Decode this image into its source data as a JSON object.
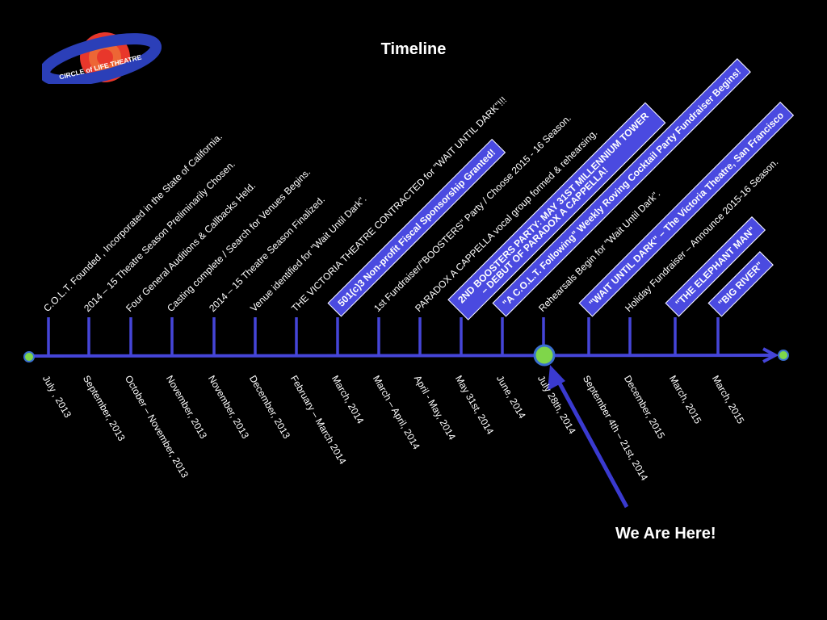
{
  "title": "Timeline",
  "logo": {
    "text": "CIRCLE of LIFE THEATRE",
    "colors": {
      "ring": "#2b3fb8",
      "planet": "#e8372b",
      "swirl": "#f07a3a"
    }
  },
  "you_are_here": "We Are Here!",
  "colors": {
    "axis": "#4545d8",
    "box_fill": "#4a4ae0",
    "marker": "#7fd64a",
    "arrow": "#3a3ad0"
  },
  "events": [
    {
      "text": "C.O.L.T. Founded , Incorporated in the State of California.",
      "boxed": false
    },
    {
      "text": "2014 – 15 Theatre Season Preliminarily Chosen.",
      "boxed": false
    },
    {
      "text": "Four General Auditions & Callbacks Held.",
      "boxed": false
    },
    {
      "text": "Casting complete / Search for Venues Begins.",
      "boxed": false
    },
    {
      "text": "2014 – 15 Theatre Season Finalized.",
      "boxed": false
    },
    {
      "text": "Venue identified for \"Wait Until Dark\".",
      "boxed": false
    },
    {
      "text": "THE VICTORIA THEATRE CONTRACTED for \"WAIT UNTIL DARK\"!!!",
      "boxed": false
    },
    {
      "text": "501(c)3 Non-profit Fiscal Sponsorship Granted!",
      "boxed": true
    },
    {
      "text": "1st Fundraiser/\"BOOSTERS\" Party / Choose 2015 - 16 Season.",
      "boxed": false
    },
    {
      "text": "PARADOX A CAPPELLA vocal group formed & rehearsing.",
      "boxed": false
    },
    {
      "text": "2ND BOOSTERS PARTY: MAY 31ST MILLENNIUM TOWER",
      "text2": "– DEBUT OF PARADOX A CAPPELLA!",
      "boxed": true
    },
    {
      "text": "\"A C.O.L.T. Following\" Weekly Roving Cocktail Party Fundraiser Begins!",
      "boxed": true
    },
    {
      "text": "Rehearsals Begin for \"Wait Until Dark\".",
      "boxed": false
    },
    {
      "text": "\"WAIT UNTIL DARK\" – The Victoria Theatre, San Francisco",
      "boxed": true
    },
    {
      "text": "Holiday Fundraiser – Announce 2015-16 Season.",
      "boxed": false
    },
    {
      "text": "\"THE ELEPHANT MAN\"",
      "boxed": true
    },
    {
      "text": "\"BIG RIVER\"",
      "boxed": true
    }
  ],
  "dates": [
    "July , 2013",
    "September, 2013",
    "October – November, 2013",
    "November, 2013",
    "November, 2013",
    "December, 2013",
    "February – March 2014",
    "March, 2014",
    "March – April, 2014",
    "April - May, 2014",
    "May 31st, 2014",
    "June, 2014",
    "July 28th, 2014",
    "September 4th – 21st, 2014",
    "December, 2015",
    "March, 2015",
    "March, 2015"
  ]
}
